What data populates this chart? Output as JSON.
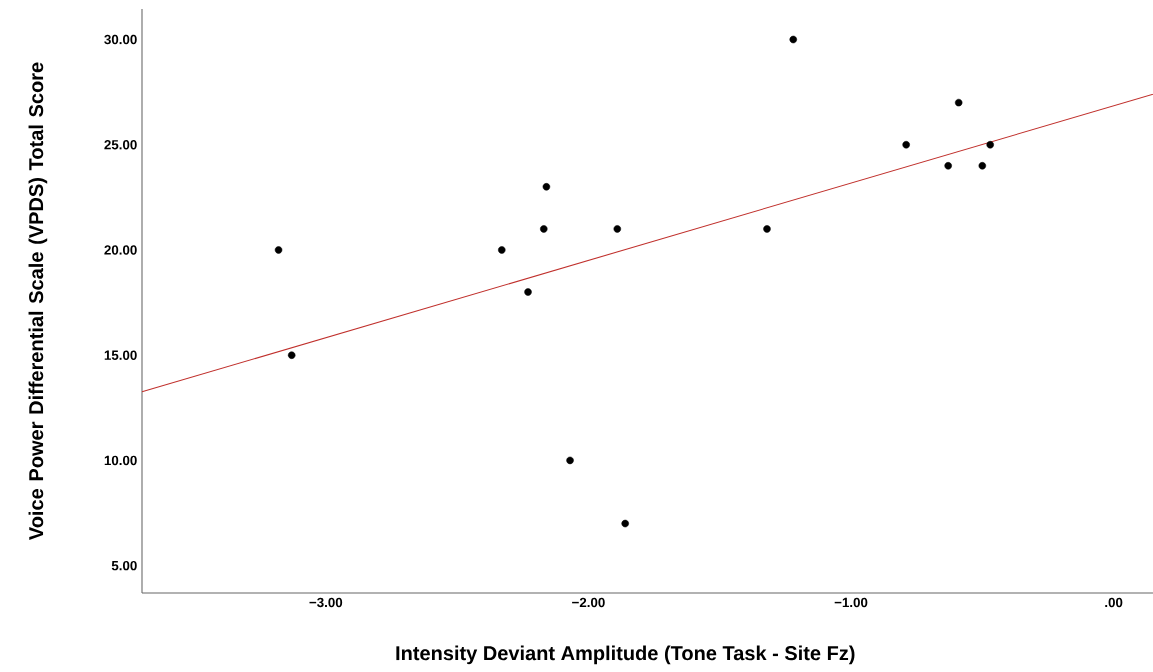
{
  "chart_data": {
    "type": "scatter",
    "xlabel": "Intensity Deviant Amplitude (Tone Task - Site Fz)",
    "ylabel": "Voice Power Differential Scale (VPDS) Total Score",
    "xlim": [
      -3.7,
      0.15
    ],
    "ylim": [
      3.7,
      31.45
    ],
    "xticks": [
      {
        "value": -3,
        "label": "−3.00"
      },
      {
        "value": -2,
        "label": "−2.00"
      },
      {
        "value": -1,
        "label": "−1.00"
      },
      {
        "value": 0,
        "label": ".00"
      }
    ],
    "yticks": [
      {
        "value": 5,
        "label": "5.00"
      },
      {
        "value": 10,
        "label": "10.00"
      },
      {
        "value": 15,
        "label": "15.00"
      },
      {
        "value": 20,
        "label": "20.00"
      },
      {
        "value": 25,
        "label": "25.00"
      },
      {
        "value": 30,
        "label": "30.00"
      }
    ],
    "series": [
      {
        "marker": "circle",
        "color": "#000000",
        "x": [
          -3.18,
          -3.13,
          -2.33,
          -2.23,
          -2.17,
          -2.16,
          -2.07,
          -1.89,
          -1.86,
          -1.32,
          -1.22,
          -0.79,
          -0.63,
          -0.59,
          -0.5,
          -0.47
        ],
        "values": [
          20,
          15,
          20,
          18,
          21,
          23,
          10,
          21,
          7,
          21,
          30,
          25,
          24,
          27,
          24,
          25
        ]
      },
      {
        "type": "line",
        "color": "#c0302c",
        "x": [
          -3.7,
          0.15
        ],
        "values": [
          13.26,
          27.4
        ]
      }
    ]
  }
}
